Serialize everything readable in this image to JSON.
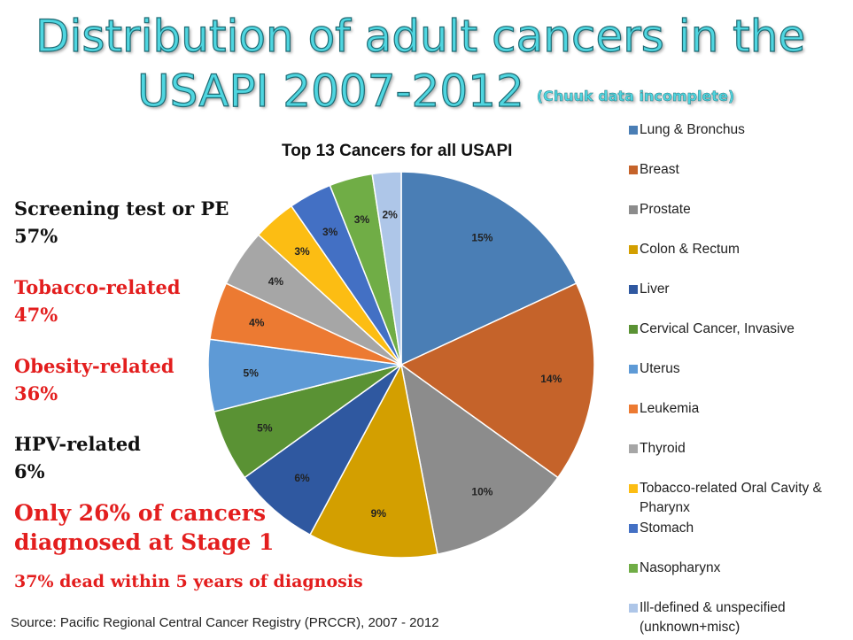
{
  "title": {
    "line1": "Distribution of adult cancers in the",
    "line2": "USAPI 2007-2012",
    "note": "(Chuuk data incomplete)"
  },
  "stats": [
    {
      "label": "Screening test or PE",
      "value": "57%",
      "color": "#111111"
    },
    {
      "label": "Tobacco-related",
      "value": "47%",
      "color": "#e31e1e"
    },
    {
      "label": "Obesity-related",
      "value": "36%",
      "color": "#e31e1e"
    },
    {
      "label": "HPV-related",
      "value": "6%",
      "color": "#111111"
    }
  ],
  "stage_note": {
    "line1": "Only 26% of cancers",
    "line2": "diagnosed at Stage 1"
  },
  "dead_note": "37% dead within 5 years of diagnosis",
  "source": "Source: Pacific Regional Central Cancer Registry (PRCCR), 2007 - 2012",
  "chart_data": {
    "type": "pie",
    "title": "Top 13 Cancers for all USAPI",
    "start": "12 o'clock",
    "direction": "clockwise",
    "slices": [
      {
        "name": "Lung & Bronchus",
        "value": 15,
        "label": "15%",
        "color": "#4a7eb5"
      },
      {
        "name": "Breast",
        "value": 14,
        "label": "14%",
        "color": "#c5632a"
      },
      {
        "name": "Prostate",
        "value": 10,
        "label": "10%",
        "color": "#8c8c8c"
      },
      {
        "name": "Colon & Rectum",
        "value": 9,
        "label": "9%",
        "color": "#d39f00"
      },
      {
        "name": "Liver",
        "value": 6,
        "label": "6%",
        "color": "#2f58a0"
      },
      {
        "name": "Cervical Cancer, Invasive",
        "value": 5,
        "label": "5%",
        "color": "#5a9234"
      },
      {
        "name": "Uterus",
        "value": 5,
        "label": "5%",
        "color": "#5e9ad6"
      },
      {
        "name": "Leukemia",
        "value": 4,
        "label": "4%",
        "color": "#ec7a32"
      },
      {
        "name": "Thyroid",
        "value": 4,
        "label": "4%",
        "color": "#a6a6a6"
      },
      {
        "name": "Tobacco-related Oral Cavity & Pharynx",
        "value": 3,
        "label": "3%",
        "color": "#fcbd13"
      },
      {
        "name": "Stomach",
        "value": 3,
        "label": "3%",
        "color": "#4370c4"
      },
      {
        "name": "Nasopharynx",
        "value": 3,
        "label": "3%",
        "color": "#70ad46"
      },
      {
        "name": "Ill-defined & unspecified (unknown+misc)",
        "value": 2,
        "label": "2%",
        "color": "#aec6e8"
      }
    ],
    "legend_position": "right"
  }
}
